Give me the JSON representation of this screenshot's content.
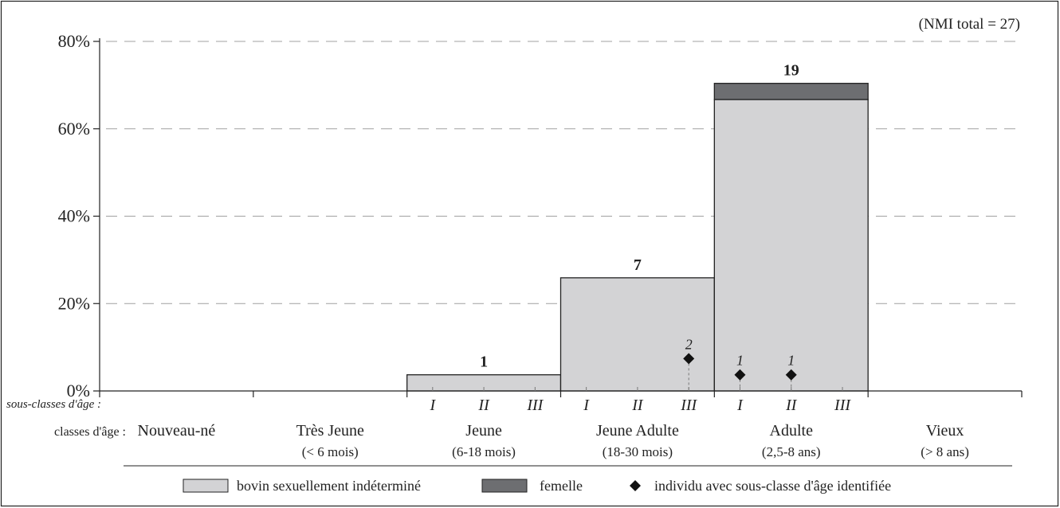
{
  "chart_data": {
    "type": "bar",
    "note": "(NMI total = 27)",
    "ylim": [
      0,
      80
    ],
    "yticks": [
      {
        "value": 0,
        "label": "0%"
      },
      {
        "value": 20,
        "label": "20%"
      },
      {
        "value": 40,
        "label": "40%"
      },
      {
        "value": 60,
        "label": "60%"
      },
      {
        "value": 80,
        "label": "80%"
      }
    ],
    "grid": true,
    "sub_axis_label": "sous-classes d'âge :",
    "class_axis_label": "classes d'âge :",
    "categories": [
      {
        "name": "Nouveau-né",
        "range": "",
        "subclasses": []
      },
      {
        "name": "Très Jeune",
        "range": "(< 6 mois)",
        "subclasses": []
      },
      {
        "name": "Jeune",
        "range": "(6-18 mois)",
        "subclasses": [
          "I",
          "II",
          "III"
        ]
      },
      {
        "name": "Jeune Adulte",
        "range": "(18-30 mois)",
        "subclasses": [
          "I",
          "II",
          "III"
        ]
      },
      {
        "name": "Adulte",
        "range": "(2,5-8 ans)",
        "subclasses": [
          "I",
          "II",
          "III"
        ]
      },
      {
        "name": "Vieux",
        "range": "(> 8 ans)",
        "subclasses": []
      }
    ],
    "series": [
      {
        "name": "bovin sexuellement indéterminé",
        "color": "#d3d3d5",
        "values": [
          0,
          0,
          3.7,
          25.9,
          66.7,
          0
        ]
      },
      {
        "name": "femelle",
        "color": "#6d6e71",
        "values": [
          0,
          0,
          0,
          0,
          3.7,
          0
        ]
      }
    ],
    "bar_labels": [
      "",
      "",
      "1",
      "7",
      "19",
      ""
    ],
    "markers": {
      "name": "individu avec sous-classe d'âge identifiée",
      "points": [
        {
          "category": 3,
          "subclass": 2,
          "y": 7.4,
          "label": "2"
        },
        {
          "category": 4,
          "subclass": 0,
          "y": 3.7,
          "label": "1"
        },
        {
          "category": 4,
          "subclass": 1,
          "y": 3.7,
          "label": "1"
        }
      ]
    }
  }
}
